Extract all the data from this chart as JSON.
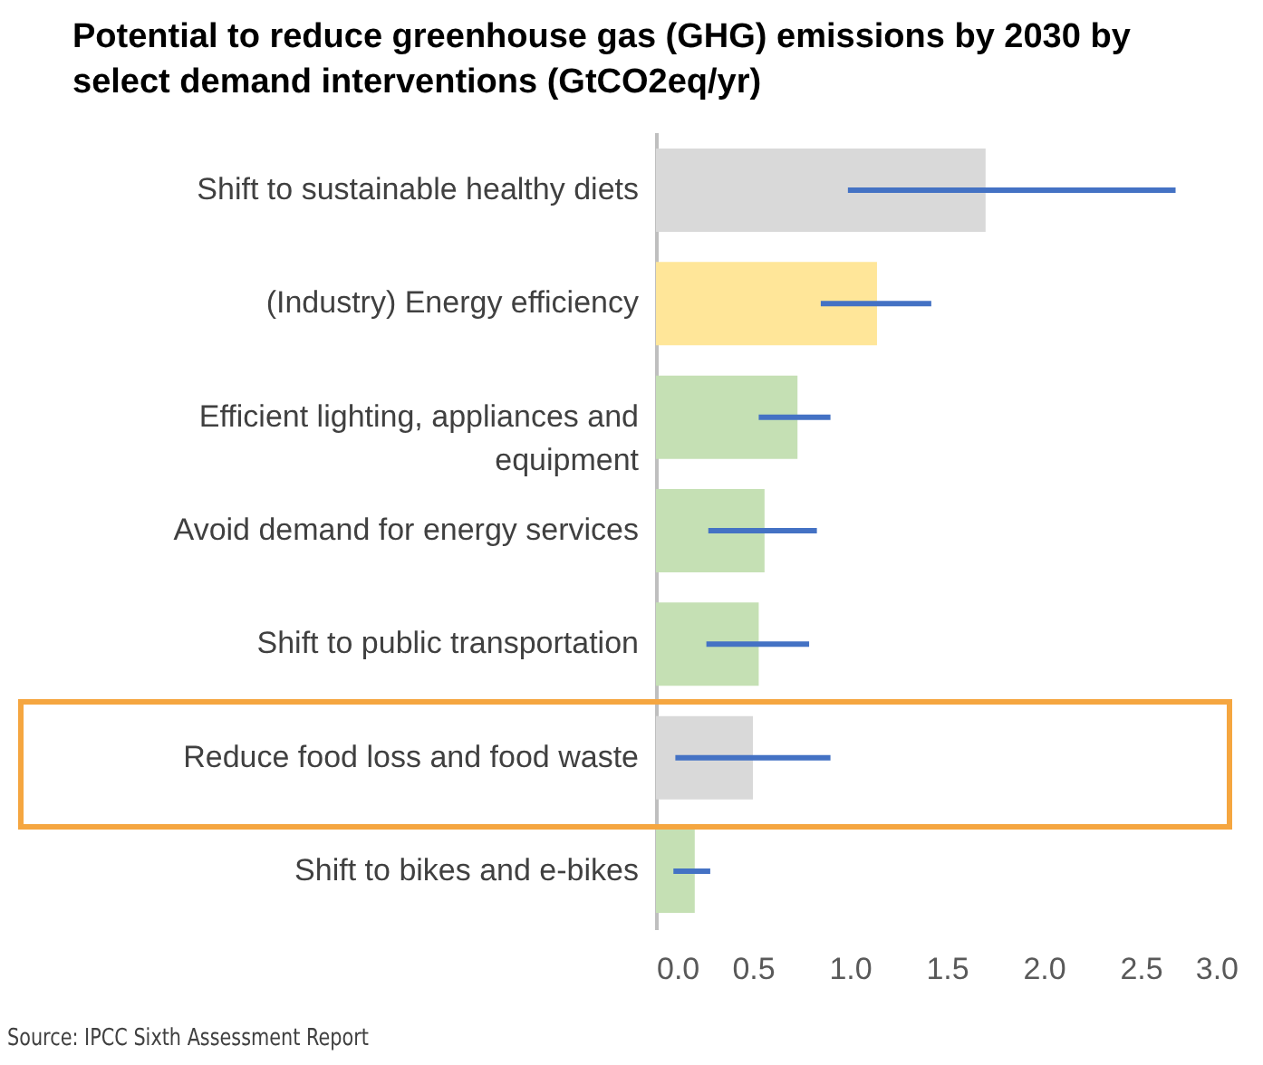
{
  "chart_data": {
    "type": "bar",
    "orientation": "horizontal",
    "title": "Potential to reduce greenhouse gas (GHG) emissions by 2030 by select demand interventions (GtCO2eq/yr)",
    "categories": [
      "Shift to sustainable healthy diets",
      "(Industry) Energy efficiency",
      "Efficient lighting, appliances and equipment",
      "Avoid demand for energy services",
      "Shift to public transportation",
      "Reduce food loss and food waste",
      "Shift to bikes and e-bikes"
    ],
    "values": [
      1.7,
      1.14,
      0.73,
      0.56,
      0.53,
      0.5,
      0.2
    ],
    "colors": [
      "#d9d9d9",
      "#ffe699",
      "#c5e0b4",
      "#c5e0b4",
      "#c5e0b4",
      "#d9d9d9",
      "#c5e0b4"
    ],
    "errors": [
      [
        0.99,
        2.68
      ],
      [
        0.85,
        1.42
      ],
      [
        0.53,
        0.9
      ],
      [
        0.27,
        0.83
      ],
      [
        0.26,
        0.79
      ],
      [
        0.1,
        0.9
      ],
      [
        0.09,
        0.28
      ]
    ],
    "xlim": [
      0,
      3
    ],
    "xticks": [
      {
        "value": 0,
        "label": "0.0"
      },
      {
        "value": 0.5,
        "label": "0.5"
      },
      {
        "value": 1,
        "label": "1.0"
      },
      {
        "value": 1.5,
        "label": "1.5"
      },
      {
        "value": 2,
        "label": "2.0"
      },
      {
        "value": 2.5,
        "label": "2.5"
      },
      {
        "value": 3,
        "label": "3.0"
      }
    ],
    "grid": false,
    "annotations": [
      "Source: IPCC Sixth Assessment Report"
    ]
  }
}
